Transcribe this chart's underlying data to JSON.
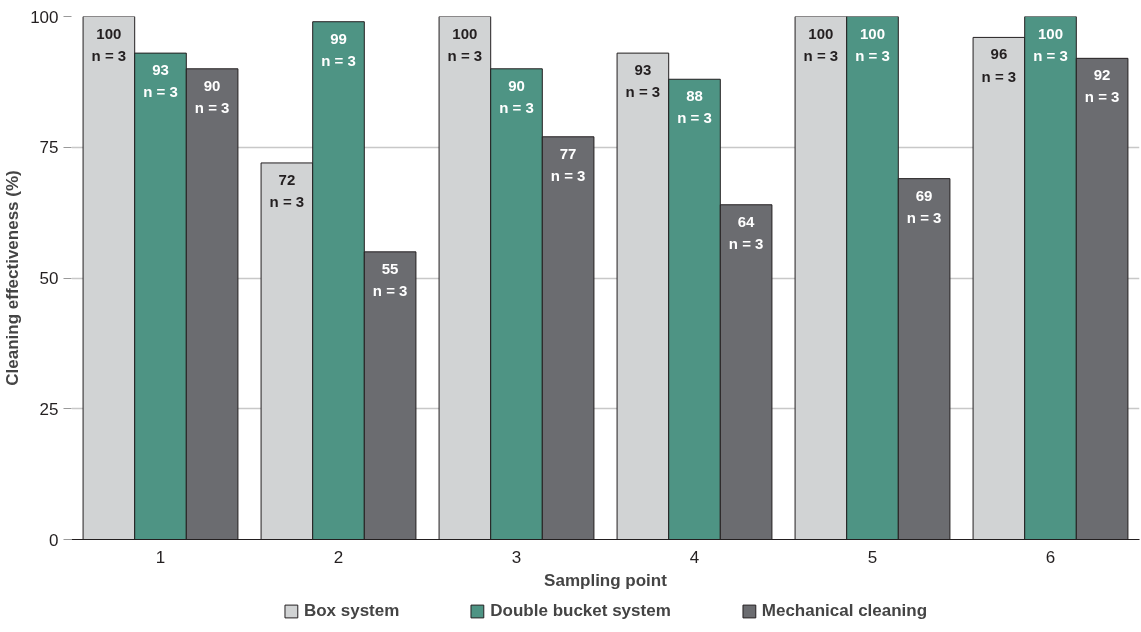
{
  "chart_data": {
    "type": "bar",
    "categories": [
      "1",
      "2",
      "3",
      "4",
      "5",
      "6"
    ],
    "xlabel": "Sampling point",
    "ylabel": "Cleaning effectiveness (%)",
    "ylim": [
      0,
      100
    ],
    "yticks": [
      0,
      25,
      50,
      75,
      100
    ],
    "grid": "y",
    "legend": "bottom",
    "series": [
      {
        "name": "Box system",
        "color": "#d1d3d4",
        "values": [
          100,
          72,
          100,
          93,
          100,
          96
        ],
        "value_labels": [
          "100\nn = 3",
          "72\nn = 3",
          "100\nn = 3",
          "93\nn = 3",
          "100\nn = 3",
          "96\nn = 3"
        ]
      },
      {
        "name": "Double bucket system",
        "color": "#4e9484",
        "values": [
          93,
          99,
          90,
          88,
          100,
          100
        ],
        "value_labels": [
          "93\nn = 3",
          "99\nn = 3",
          "90\nn = 3",
          "88\nn = 3",
          "100\nn = 3",
          "100\nn = 3"
        ]
      },
      {
        "name": "Mechanical cleaning",
        "color": "#6b6c70",
        "values": [
          90,
          55,
          77,
          64,
          69,
          92
        ],
        "value_labels": [
          "90\nn = 3",
          "55\nn = 3",
          "77\nn = 3",
          "64\nn = 3",
          "69\nn = 3",
          "92\nn = 3"
        ]
      }
    ]
  }
}
